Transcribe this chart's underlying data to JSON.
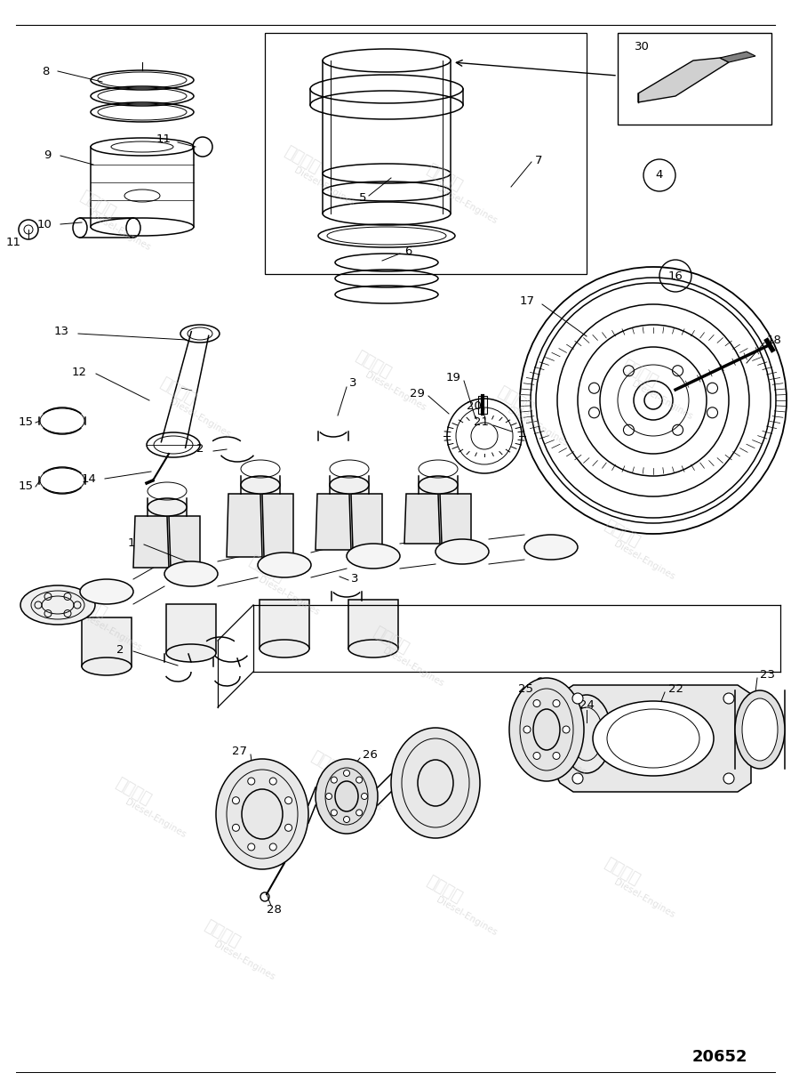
{
  "part_number": "20652",
  "background_color": "#ffffff",
  "watermark_text_1": "紫发动力",
  "watermark_text_2": "Diesel-Engines",
  "fig_width": 8.9,
  "fig_height": 12.15,
  "dpi": 100
}
